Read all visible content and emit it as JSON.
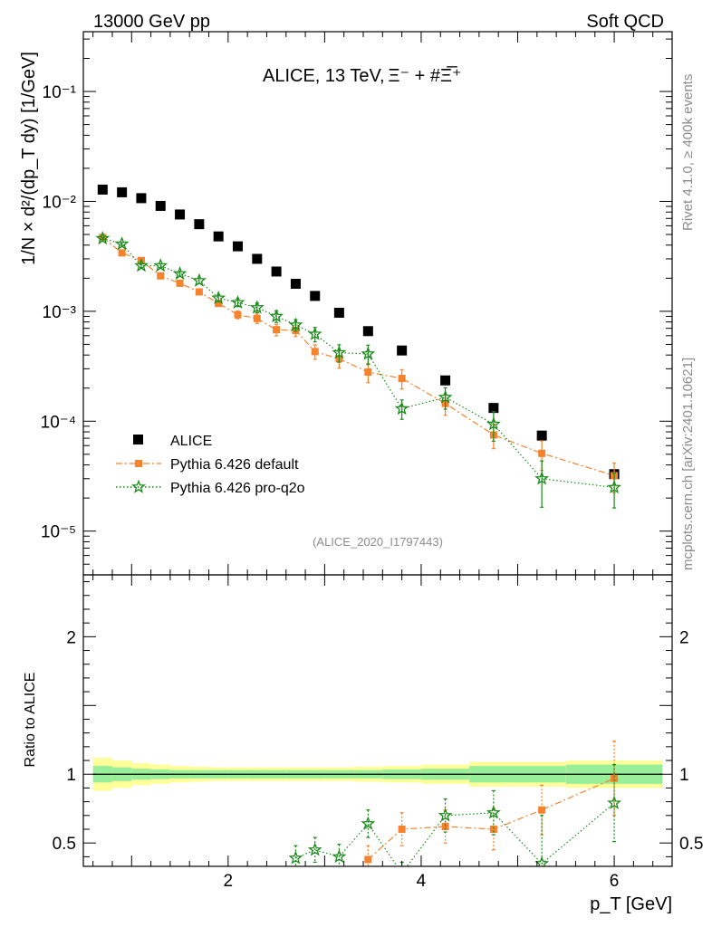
{
  "header": {
    "left": "13000 GeV pp",
    "right": "Soft QCD"
  },
  "side_labels": {
    "rivet": "Rivet 4.1.0, ≥ 400k events",
    "mcplots": "mcplots.cern.ch [arXiv:2401.10621]"
  },
  "chart_data": [
    {
      "type": "scatter",
      "panel": "main",
      "title_prefix": "ALICE, 13 TeV,",
      "title_particles": "Ξ⁻ + #Ξ̅⁺",
      "ylabel": "1/N × d²/(dp_T dy) [1/GeV]",
      "y_scale": "log",
      "ylim": [
        4e-06,
        0.35
      ],
      "xlim": [
        0.5,
        6.6
      ],
      "y_tick_labels": [
        "10⁻¹",
        "10⁻²",
        "10⁻³",
        "10⁻⁴",
        "10⁻⁵"
      ],
      "y_tick_values": [
        0.1,
        0.01,
        0.001,
        0.0001,
        1e-05
      ],
      "watermark": "(ALICE_2020_I1797443)",
      "legend_position": "lower-left",
      "series": [
        {
          "name": "ALICE",
          "color": "#000000",
          "marker": "square",
          "x": [
            0.7,
            0.9,
            1.1,
            1.3,
            1.5,
            1.7,
            1.9,
            2.1,
            2.3,
            2.5,
            2.7,
            2.9,
            3.15,
            3.45,
            3.8,
            4.25,
            4.75,
            5.25,
            6.0
          ],
          "y": [
            0.0128,
            0.0121,
            0.0107,
            0.0091,
            0.0076,
            0.0062,
            0.0048,
            0.0039,
            0.003,
            0.0023,
            0.00178,
            0.00138,
            0.00097,
            0.00066,
            0.00044,
            0.000235,
            0.000132,
            7.4e-05,
            3.3e-05
          ]
        },
        {
          "name": "Pythia 6.426 default",
          "color": "#f5822c",
          "marker": "square-small",
          "line": "dashdot",
          "x": [
            0.7,
            0.9,
            1.1,
            1.3,
            1.5,
            1.7,
            1.9,
            2.1,
            2.3,
            2.5,
            2.7,
            2.9,
            3.15,
            3.45,
            3.8,
            4.25,
            4.75,
            5.25,
            6.0
          ],
          "y": [
            0.0047,
            0.0034,
            0.0029,
            0.0021,
            0.0018,
            0.0015,
            0.00118,
            0.00093,
            0.00086,
            0.00068,
            0.00067,
            0.00043,
            0.00037,
            0.00028,
            0.000245,
            0.000145,
            7.5e-05,
            5.1e-05,
            3.2e-05
          ],
          "err_rel": [
            0.02,
            0.03,
            0.03,
            0.04,
            0.04,
            0.05,
            0.06,
            0.08,
            0.1,
            0.12,
            0.12,
            0.15,
            0.18,
            0.2,
            0.2,
            0.22,
            0.25,
            0.3,
            0.3
          ]
        },
        {
          "name": "Pythia 6.426 pro-q2o",
          "color": "#1a8a1a",
          "marker": "star",
          "line": "dotted",
          "x": [
            0.7,
            0.9,
            1.1,
            1.3,
            1.5,
            1.7,
            1.9,
            2.1,
            2.3,
            2.5,
            2.7,
            2.9,
            3.15,
            3.45,
            3.8,
            4.25,
            4.75,
            5.25,
            6.0
          ],
          "y": [
            0.0046,
            0.0041,
            0.0026,
            0.0026,
            0.0022,
            0.0019,
            0.00132,
            0.0012,
            0.00108,
            0.0009,
            0.00075,
            0.00062,
            0.00042,
            0.00041,
            0.00013,
            0.000165,
            9.4e-05,
            3e-05,
            2.5e-05
          ],
          "err_rel": [
            0.02,
            0.03,
            0.04,
            0.04,
            0.05,
            0.06,
            0.07,
            0.08,
            0.1,
            0.12,
            0.12,
            0.15,
            0.18,
            0.2,
            0.2,
            0.22,
            0.3,
            0.45,
            0.35
          ]
        }
      ]
    },
    {
      "type": "scatter",
      "panel": "ratio",
      "ylabel": "Ratio to ALICE",
      "xlabel": "p_T [GeV]",
      "ylim": [
        0.33,
        2.45
      ],
      "xlim": [
        0.5,
        6.6
      ],
      "y_tick_labels": [
        "2",
        "1",
        "0.5"
      ],
      "y_tick_values": [
        2,
        1,
        0.5
      ],
      "x_tick_labels": [
        "2",
        "4",
        "6"
      ],
      "x_tick_values": [
        2,
        4,
        6
      ],
      "band_bins": [
        0.6,
        0.8,
        1.0,
        1.2,
        1.4,
        1.6,
        1.8,
        2.0,
        2.2,
        2.4,
        2.6,
        2.8,
        3.0,
        3.3,
        3.6,
        4.0,
        4.5,
        5.0,
        5.5,
        6.5
      ],
      "band_inner": [
        0.06,
        0.05,
        0.04,
        0.035,
        0.03,
        0.03,
        0.03,
        0.03,
        0.03,
        0.03,
        0.03,
        0.03,
        0.03,
        0.03,
        0.035,
        0.04,
        0.06,
        0.06,
        0.07
      ],
      "band_outer": [
        0.12,
        0.1,
        0.08,
        0.07,
        0.06,
        0.055,
        0.05,
        0.05,
        0.05,
        0.05,
        0.05,
        0.05,
        0.05,
        0.055,
        0.06,
        0.07,
        0.09,
        0.09,
        0.1
      ],
      "band_inner_color": "#99ee99",
      "band_outer_color": "#ffff99",
      "series": [
        {
          "name": "Pythia 6.426 default",
          "color": "#f5822c",
          "x": [
            3.45,
            3.8,
            4.25,
            4.75,
            5.25,
            6.0
          ],
          "y": [
            0.38,
            0.6,
            0.62,
            0.6,
            0.74,
            0.97
          ],
          "err": [
            0.1,
            0.12,
            0.12,
            0.15,
            0.18,
            0.27
          ]
        },
        {
          "name": "Pythia 6.426 pro-q2o",
          "color": "#1a8a1a",
          "x": [
            2.7,
            2.9,
            3.15,
            3.45,
            3.8,
            4.25,
            4.75,
            5.25,
            6.0
          ],
          "y": [
            0.39,
            0.45,
            0.4,
            0.64,
            0.28,
            0.7,
            0.72,
            0.35,
            0.79
          ],
          "err": [
            0.09,
            0.09,
            0.09,
            0.1,
            0.08,
            0.12,
            0.16,
            0.35,
            0.28
          ]
        }
      ]
    }
  ]
}
